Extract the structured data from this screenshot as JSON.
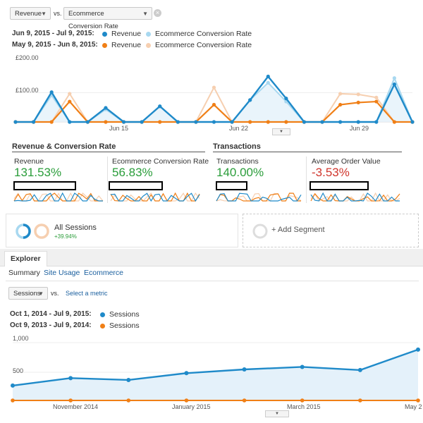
{
  "compare_bar": {
    "primary_metric": "Revenue",
    "vs_label": "vs.",
    "secondary_metric": "Ecommerce Conversion Rate"
  },
  "top_legend": {
    "current_range": "Jun 9, 2015 - Jul 9, 2015:",
    "previous_range": "May 9, 2015 - Jun 8, 2015:",
    "series_a": "Revenue",
    "series_b": "Ecommerce Conversion Rate"
  },
  "top_chart": {
    "y_ticks": [
      "£200.00",
      "£100.00"
    ],
    "x_ticks": [
      "Jun 15",
      "Jun 22",
      "Jun 29"
    ]
  },
  "scorecards": {
    "group1_title": "Revenue & Conversion Rate",
    "group2_title": "Transactions",
    "items": [
      {
        "label": "Revenue",
        "value": "131.53%",
        "trend": "up"
      },
      {
        "label": "Ecommerce Conversion Rate",
        "value": "56.83%",
        "trend": "up"
      },
      {
        "label": "Transactions",
        "value": "140.00%",
        "trend": "up"
      },
      {
        "label": "Average Order Value",
        "value": "-3.53%",
        "trend": "down"
      }
    ]
  },
  "segments": {
    "all_sessions_label": "All Sessions",
    "all_sessions_change": "+39.94%",
    "add_segment_label": "+ Add Segment"
  },
  "explorer": {
    "tab_label": "Explorer",
    "subtabs": [
      "Summary",
      "Site Usage",
      "Ecommerce"
    ],
    "metric_select": "Sessions",
    "vs_label": "vs.",
    "select_metric_link": "Select a metric",
    "current_range": "Oct 1, 2014 - Jul 9, 2015:",
    "previous_range": "Oct 9, 2013 - Jul 9, 2014:",
    "series_label": "Sessions"
  },
  "colors": {
    "current": "#1f8ac9",
    "current_light": "#a8d8f0",
    "previous": "#f07f16",
    "previous_light": "#f6cfb0",
    "area_fill": "#e4f1fa"
  },
  "chart_data": [
    {
      "type": "line",
      "title": "",
      "y_tick_labels": [
        "£200.00",
        "£100.00"
      ],
      "x_tick_labels": [
        "Jun 15",
        "Jun 22",
        "Jun 29"
      ],
      "ylim": [
        0,
        200
      ],
      "series": [
        {
          "name": "Revenue",
          "period": "Jun 9, 2015 - Jul 9, 2015",
          "values": [
            0,
            0,
            95,
            0,
            0,
            45,
            0,
            0,
            50,
            0,
            0,
            0,
            0,
            70,
            145,
            75,
            0,
            0,
            0,
            0,
            0,
            120,
            0
          ]
        },
        {
          "name": "Ecommerce Conversion Rate",
          "period": "Jun 9, 2015 - Jul 9, 2015",
          "values": [
            0,
            0,
            85,
            0,
            0,
            40,
            0,
            0,
            50,
            0,
            0,
            0,
            0,
            70,
            125,
            65,
            0,
            0,
            0,
            0,
            0,
            140,
            0
          ]
        },
        {
          "name": "Revenue",
          "period": "May 9, 2015 - Jun 8, 2015",
          "values": [
            0,
            0,
            0,
            65,
            0,
            0,
            0,
            0,
            0,
            0,
            0,
            55,
            0,
            0,
            0,
            0,
            0,
            0,
            55,
            62,
            65,
            0,
            0
          ]
        },
        {
          "name": "Ecommerce Conversion Rate",
          "period": "May 9, 2015 - Jun 8, 2015",
          "values": [
            0,
            0,
            0,
            90,
            0,
            0,
            0,
            0,
            0,
            0,
            0,
            110,
            0,
            0,
            0,
            0,
            0,
            0,
            90,
            88,
            78,
            0,
            0
          ]
        }
      ]
    },
    {
      "type": "line",
      "title": "",
      "y_tick_labels": [
        "1,000",
        "500"
      ],
      "x_tick_labels": [
        "November 2014",
        "January 2015",
        "March 2015",
        "May 2"
      ],
      "ylim": [
        0,
        1000
      ],
      "series": [
        {
          "name": "Sessions",
          "period": "Oct 1, 2014 - Jul 9, 2015",
          "values": [
            240,
            360,
            330,
            440,
            500,
            540,
            490,
            820
          ]
        },
        {
          "name": "Sessions",
          "period": "Oct 9, 2013 - Jul 9, 2014",
          "values": [
            0,
            0,
            0,
            0,
            0,
            0,
            0,
            0
          ]
        }
      ]
    }
  ]
}
